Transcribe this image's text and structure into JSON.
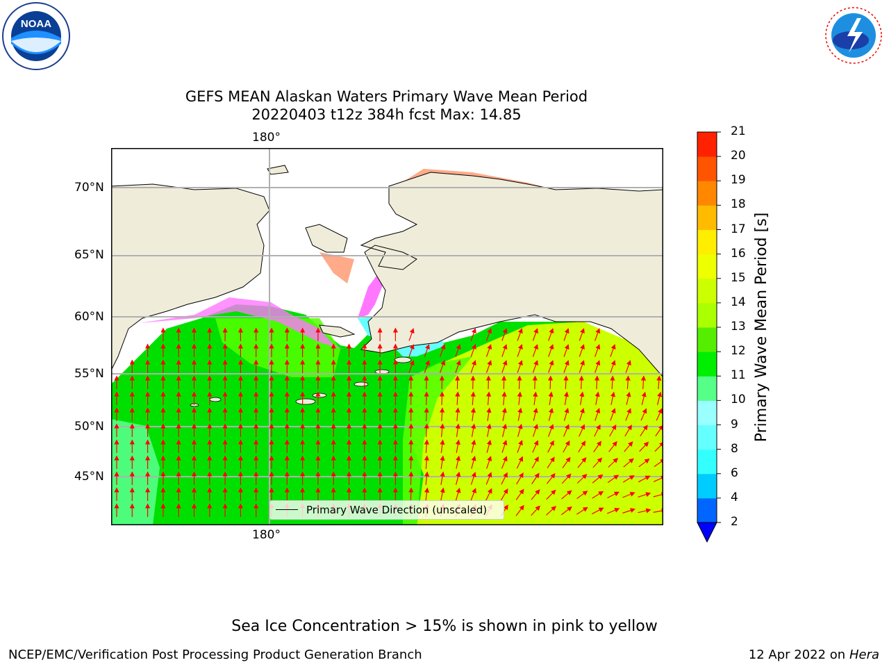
{
  "title_line1": "GEFS MEAN Alaskan Waters Primary Wave Mean Period",
  "title_line2": "20220403 t12z 384h fcst   Max: 14.85",
  "map": {
    "lon_label_top": "180°",
    "lon_label_bottom": "180°",
    "lat_labels": [
      "70°N",
      "65°N",
      "60°N",
      "55°N",
      "50°N",
      "45°N"
    ],
    "legend_text": "Primary Wave Direction (unscaled)",
    "colors": {
      "land": "#efedda",
      "ocean_green": "#00e000",
      "ocean_lightgreen": "#55ff00",
      "ocean_yellow": "#ccff00",
      "ice_pink": "#ff77ff",
      "arrow": "#ff0000"
    }
  },
  "colorbar": {
    "label": "Primary Wave Mean Period [s]",
    "ticks": [
      "2",
      "4",
      "6",
      "8",
      "9",
      "10",
      "11",
      "12",
      "13",
      "14",
      "15",
      "16",
      "17",
      "18",
      "19",
      "20",
      "21"
    ],
    "colors": [
      "#0066ff",
      "#00ccff",
      "#33ffff",
      "#66ffff",
      "#99ffff",
      "#55ff88",
      "#00ee00",
      "#55ee00",
      "#aaff00",
      "#ccff00",
      "#eeff00",
      "#ffee00",
      "#ffbb00",
      "#ff8800",
      "#ff5500",
      "#ff2200"
    ],
    "extend_color": "#0000ff"
  },
  "logos": {
    "noaa": "NOAA",
    "nws": "NATIONAL WEATHER SERVICE"
  },
  "footer": {
    "caption": "Sea Ice Concentration > 15% is shown in pink to yellow",
    "left": "NCEP/EMC/Verification Post Processing Product Generation Branch",
    "right_date": "12 Apr 2022 on ",
    "right_host": "Hera"
  }
}
